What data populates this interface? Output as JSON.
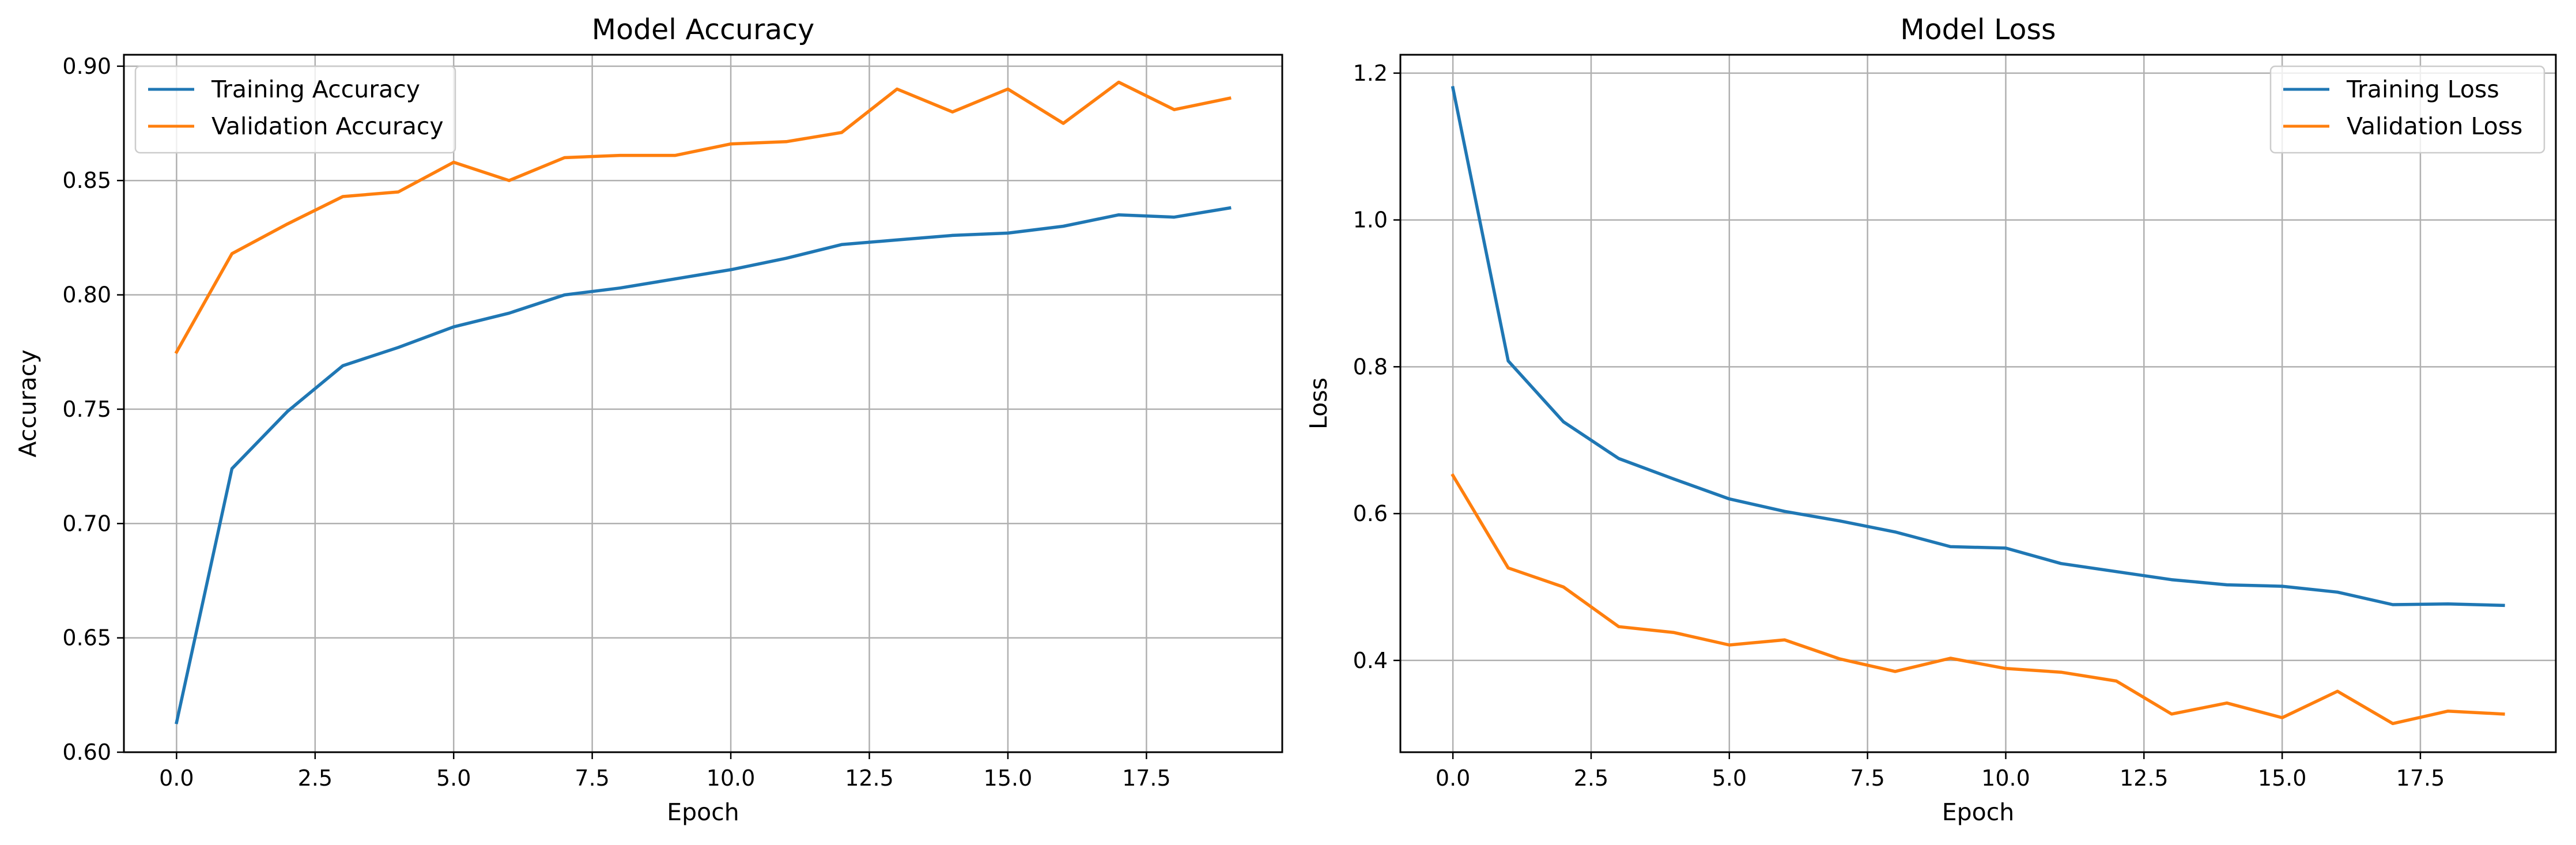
{
  "chart_data": [
    {
      "type": "line",
      "title": "Model Accuracy",
      "xlabel": "Epoch",
      "ylabel": "Accuracy",
      "x": [
        0,
        1,
        2,
        3,
        4,
        5,
        6,
        7,
        8,
        9,
        10,
        11,
        12,
        13,
        14,
        15,
        16,
        17,
        18,
        19
      ],
      "xlim": [
        -0.95,
        19.95
      ],
      "ylim": [
        0.6,
        0.905
      ],
      "xticks": [
        0.0,
        2.5,
        5.0,
        7.5,
        10.0,
        12.5,
        15.0,
        17.5
      ],
      "xtick_labels": [
        "0.0",
        "2.5",
        "5.0",
        "7.5",
        "10.0",
        "12.5",
        "15.0",
        "17.5"
      ],
      "yticks": [
        0.6,
        0.65,
        0.7,
        0.75,
        0.8,
        0.85,
        0.9
      ],
      "ytick_labels": [
        "0.60",
        "0.65",
        "0.70",
        "0.75",
        "0.80",
        "0.85",
        "0.90"
      ],
      "grid": true,
      "legend_position": "upper-left",
      "series": [
        {
          "name": "Training Accuracy",
          "color": "#1f77b4",
          "values": [
            0.613,
            0.724,
            0.749,
            0.769,
            0.777,
            0.786,
            0.792,
            0.8,
            0.803,
            0.807,
            0.811,
            0.816,
            0.822,
            0.824,
            0.826,
            0.827,
            0.83,
            0.835,
            0.834,
            0.838
          ]
        },
        {
          "name": "Validation Accuracy",
          "color": "#ff7f0e",
          "values": [
            0.775,
            0.818,
            0.831,
            0.843,
            0.845,
            0.858,
            0.85,
            0.86,
            0.861,
            0.861,
            0.866,
            0.867,
            0.871,
            0.89,
            0.88,
            0.89,
            0.875,
            0.893,
            0.881,
            0.886
          ]
        }
      ]
    },
    {
      "type": "line",
      "title": "Model Loss",
      "xlabel": "Epoch",
      "ylabel": "Loss",
      "x": [
        0,
        1,
        2,
        3,
        4,
        5,
        6,
        7,
        8,
        9,
        10,
        11,
        12,
        13,
        14,
        15,
        16,
        17,
        18,
        19
      ],
      "xlim": [
        -0.95,
        19.95
      ],
      "ylim": [
        0.275,
        1.225
      ],
      "xticks": [
        0.0,
        2.5,
        5.0,
        7.5,
        10.0,
        12.5,
        15.0,
        17.5
      ],
      "xtick_labels": [
        "0.0",
        "2.5",
        "5.0",
        "7.5",
        "10.0",
        "12.5",
        "15.0",
        "17.5"
      ],
      "yticks": [
        0.4,
        0.6,
        0.8,
        1.0,
        1.2
      ],
      "ytick_labels": [
        "0.4",
        "0.6",
        "0.8",
        "1.0",
        "1.2"
      ],
      "grid": true,
      "legend_position": "upper-right",
      "series": [
        {
          "name": "Training Loss",
          "color": "#1f77b4",
          "values": [
            1.18,
            0.808,
            0.725,
            0.675,
            0.647,
            0.62,
            0.603,
            0.59,
            0.575,
            0.555,
            0.553,
            0.532,
            0.521,
            0.51,
            0.503,
            0.501,
            0.493,
            0.476,
            0.477,
            0.475
          ]
        },
        {
          "name": "Validation Loss",
          "color": "#ff7f0e",
          "values": [
            0.652,
            0.526,
            0.5,
            0.446,
            0.438,
            0.421,
            0.428,
            0.402,
            0.385,
            0.403,
            0.389,
            0.384,
            0.372,
            0.327,
            0.342,
            0.322,
            0.358,
            0.314,
            0.331,
            0.327
          ]
        }
      ]
    }
  ]
}
